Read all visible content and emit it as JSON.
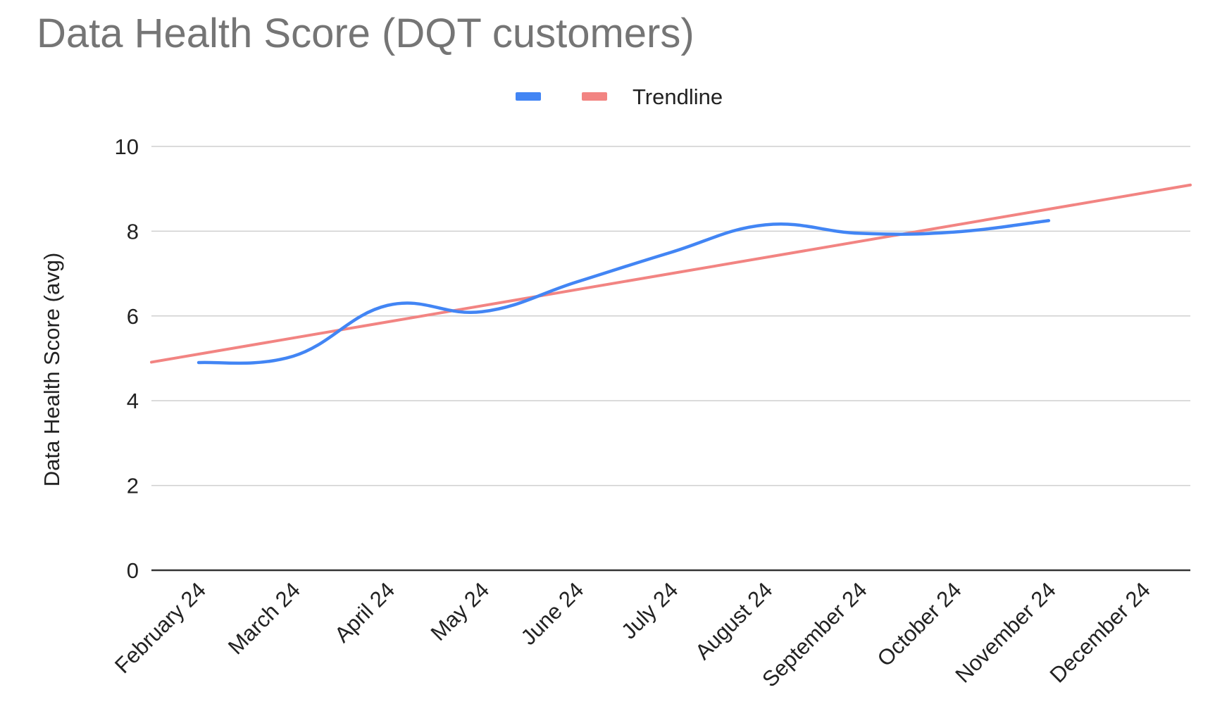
{
  "chart_data": {
    "type": "line",
    "title": "Data Health Score (DQT customers)",
    "xlabel": "",
    "ylabel": "Data Health Score (avg)",
    "ylim": [
      0,
      10
    ],
    "yticks": [
      "0",
      "2",
      "4",
      "6",
      "8",
      "10"
    ],
    "grid": true,
    "legend_position": "top-center",
    "categories": [
      "February 24",
      "March 24",
      "April 24",
      "May 24",
      "June 24",
      "July 24",
      "August 24",
      "September 24",
      "October 24",
      "November 24",
      "December 24"
    ],
    "series": [
      {
        "name": "",
        "color": "#4285F4",
        "smooth": true,
        "values": [
          4.9,
          5.05,
          6.25,
          6.1,
          6.8,
          7.5,
          8.15,
          7.95,
          7.98,
          8.25,
          null
        ]
      },
      {
        "name": "Trendline",
        "color": "#F28482",
        "trendline": true,
        "values": [
          5.1,
          5.48,
          5.86,
          6.24,
          6.62,
          7.0,
          7.38,
          7.76,
          8.14,
          8.52,
          8.9
        ],
        "extends_to_edges": true
      }
    ]
  }
}
